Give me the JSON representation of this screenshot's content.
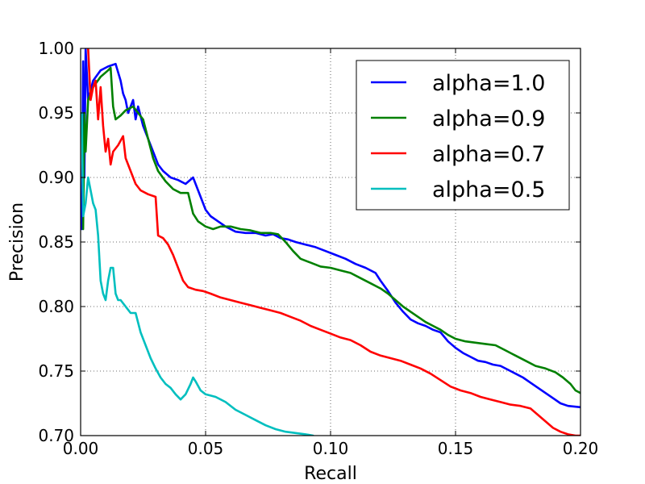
{
  "chart_data": {
    "type": "line",
    "title": "",
    "xlabel": "Recall",
    "ylabel": "Precision",
    "xlim": [
      0.0,
      0.2
    ],
    "ylim": [
      0.7,
      1.0
    ],
    "grid": true,
    "legend_position": "top-right",
    "x_ticks": [
      0.0,
      0.05,
      0.1,
      0.15,
      0.2
    ],
    "x_tick_labels": [
      "0.00",
      "0.05",
      "0.10",
      "0.15",
      "0.20"
    ],
    "y_ticks": [
      0.7,
      0.75,
      0.8,
      0.85,
      0.9,
      0.95,
      1.0
    ],
    "y_tick_labels": [
      "0.70",
      "0.75",
      "0.80",
      "0.85",
      "0.90",
      "0.95",
      "1.00"
    ],
    "series": [
      {
        "name": "alpha=1.0",
        "color": "#0000ff",
        "points": [
          [
            0.0005,
            0.86
          ],
          [
            0.001,
            0.99
          ],
          [
            0.0015,
            0.9
          ],
          [
            0.002,
            1.0
          ],
          [
            0.003,
            0.96
          ],
          [
            0.005,
            0.975
          ],
          [
            0.008,
            0.983
          ],
          [
            0.011,
            0.986
          ],
          [
            0.014,
            0.988
          ],
          [
            0.016,
            0.975
          ],
          [
            0.017,
            0.965
          ],
          [
            0.018,
            0.96
          ],
          [
            0.019,
            0.95
          ],
          [
            0.021,
            0.96
          ],
          [
            0.022,
            0.945
          ],
          [
            0.023,
            0.955
          ],
          [
            0.025,
            0.94
          ],
          [
            0.027,
            0.93
          ],
          [
            0.029,
            0.92
          ],
          [
            0.031,
            0.91
          ],
          [
            0.033,
            0.905
          ],
          [
            0.036,
            0.9
          ],
          [
            0.039,
            0.898
          ],
          [
            0.042,
            0.895
          ],
          [
            0.045,
            0.9
          ],
          [
            0.048,
            0.885
          ],
          [
            0.05,
            0.875
          ],
          [
            0.052,
            0.87
          ],
          [
            0.055,
            0.866
          ],
          [
            0.058,
            0.862
          ],
          [
            0.062,
            0.858
          ],
          [
            0.066,
            0.857
          ],
          [
            0.07,
            0.857
          ],
          [
            0.074,
            0.855
          ],
          [
            0.077,
            0.856
          ],
          [
            0.08,
            0.853
          ],
          [
            0.083,
            0.852
          ],
          [
            0.086,
            0.85
          ],
          [
            0.09,
            0.848
          ],
          [
            0.094,
            0.846
          ],
          [
            0.098,
            0.843
          ],
          [
            0.102,
            0.84
          ],
          [
            0.106,
            0.837
          ],
          [
            0.11,
            0.833
          ],
          [
            0.114,
            0.83
          ],
          [
            0.118,
            0.826
          ],
          [
            0.12,
            0.82
          ],
          [
            0.123,
            0.812
          ],
          [
            0.126,
            0.803
          ],
          [
            0.129,
            0.796
          ],
          [
            0.132,
            0.79
          ],
          [
            0.135,
            0.787
          ],
          [
            0.138,
            0.785
          ],
          [
            0.141,
            0.782
          ],
          [
            0.144,
            0.78
          ],
          [
            0.147,
            0.773
          ],
          [
            0.15,
            0.768
          ],
          [
            0.153,
            0.764
          ],
          [
            0.156,
            0.761
          ],
          [
            0.159,
            0.758
          ],
          [
            0.162,
            0.757
          ],
          [
            0.165,
            0.755
          ],
          [
            0.168,
            0.754
          ],
          [
            0.171,
            0.751
          ],
          [
            0.174,
            0.748
          ],
          [
            0.177,
            0.745
          ],
          [
            0.18,
            0.741
          ],
          [
            0.183,
            0.737
          ],
          [
            0.186,
            0.733
          ],
          [
            0.189,
            0.729
          ],
          [
            0.192,
            0.725
          ],
          [
            0.195,
            0.723
          ],
          [
            0.2,
            0.722
          ]
        ]
      },
      {
        "name": "alpha=0.9",
        "color": "#008000",
        "points": [
          [
            0.001,
            0.86
          ],
          [
            0.0015,
            0.95
          ],
          [
            0.002,
            0.92
          ],
          [
            0.003,
            0.96
          ],
          [
            0.005,
            0.97
          ],
          [
            0.008,
            0.978
          ],
          [
            0.011,
            0.983
          ],
          [
            0.012,
            0.985
          ],
          [
            0.013,
            0.955
          ],
          [
            0.014,
            0.945
          ],
          [
            0.016,
            0.948
          ],
          [
            0.018,
            0.952
          ],
          [
            0.021,
            0.955
          ],
          [
            0.023,
            0.95
          ],
          [
            0.025,
            0.945
          ],
          [
            0.027,
            0.93
          ],
          [
            0.029,
            0.915
          ],
          [
            0.031,
            0.905
          ],
          [
            0.034,
            0.897
          ],
          [
            0.037,
            0.891
          ],
          [
            0.04,
            0.888
          ],
          [
            0.043,
            0.888
          ],
          [
            0.045,
            0.872
          ],
          [
            0.047,
            0.866
          ],
          [
            0.05,
            0.862
          ],
          [
            0.053,
            0.86
          ],
          [
            0.056,
            0.862
          ],
          [
            0.06,
            0.862
          ],
          [
            0.064,
            0.86
          ],
          [
            0.068,
            0.859
          ],
          [
            0.072,
            0.857
          ],
          [
            0.076,
            0.857
          ],
          [
            0.079,
            0.856
          ],
          [
            0.082,
            0.85
          ],
          [
            0.085,
            0.843
          ],
          [
            0.088,
            0.837
          ],
          [
            0.092,
            0.834
          ],
          [
            0.096,
            0.831
          ],
          [
            0.1,
            0.83
          ],
          [
            0.104,
            0.828
          ],
          [
            0.108,
            0.826
          ],
          [
            0.112,
            0.822
          ],
          [
            0.116,
            0.818
          ],
          [
            0.12,
            0.814
          ],
          [
            0.123,
            0.81
          ],
          [
            0.126,
            0.805
          ],
          [
            0.129,
            0.8
          ],
          [
            0.132,
            0.796
          ],
          [
            0.135,
            0.792
          ],
          [
            0.138,
            0.788
          ],
          [
            0.141,
            0.785
          ],
          [
            0.144,
            0.782
          ],
          [
            0.147,
            0.778
          ],
          [
            0.15,
            0.775
          ],
          [
            0.154,
            0.773
          ],
          [
            0.158,
            0.772
          ],
          [
            0.162,
            0.771
          ],
          [
            0.166,
            0.77
          ],
          [
            0.17,
            0.766
          ],
          [
            0.174,
            0.762
          ],
          [
            0.178,
            0.758
          ],
          [
            0.182,
            0.754
          ],
          [
            0.186,
            0.752
          ],
          [
            0.19,
            0.749
          ],
          [
            0.193,
            0.745
          ],
          [
            0.196,
            0.74
          ],
          [
            0.198,
            0.735
          ],
          [
            0.2,
            0.733
          ]
        ]
      },
      {
        "name": "alpha=0.7",
        "color": "#ff0000",
        "points": [
          [
            0.003,
            1.0
          ],
          [
            0.004,
            0.96
          ],
          [
            0.005,
            0.97
          ],
          [
            0.006,
            0.975
          ],
          [
            0.007,
            0.945
          ],
          [
            0.008,
            0.97
          ],
          [
            0.009,
            0.94
          ],
          [
            0.01,
            0.92
          ],
          [
            0.011,
            0.93
          ],
          [
            0.012,
            0.91
          ],
          [
            0.013,
            0.92
          ],
          [
            0.015,
            0.925
          ],
          [
            0.017,
            0.932
          ],
          [
            0.018,
            0.915
          ],
          [
            0.019,
            0.91
          ],
          [
            0.02,
            0.905
          ],
          [
            0.022,
            0.895
          ],
          [
            0.024,
            0.89
          ],
          [
            0.027,
            0.887
          ],
          [
            0.03,
            0.885
          ],
          [
            0.031,
            0.855
          ],
          [
            0.033,
            0.853
          ],
          [
            0.035,
            0.848
          ],
          [
            0.037,
            0.84
          ],
          [
            0.039,
            0.83
          ],
          [
            0.041,
            0.82
          ],
          [
            0.043,
            0.815
          ],
          [
            0.046,
            0.813
          ],
          [
            0.049,
            0.812
          ],
          [
            0.052,
            0.81
          ],
          [
            0.056,
            0.807
          ],
          [
            0.06,
            0.805
          ],
          [
            0.064,
            0.803
          ],
          [
            0.068,
            0.801
          ],
          [
            0.072,
            0.799
          ],
          [
            0.076,
            0.797
          ],
          [
            0.08,
            0.795
          ],
          [
            0.084,
            0.792
          ],
          [
            0.088,
            0.789
          ],
          [
            0.092,
            0.785
          ],
          [
            0.096,
            0.782
          ],
          [
            0.1,
            0.779
          ],
          [
            0.104,
            0.776
          ],
          [
            0.108,
            0.774
          ],
          [
            0.112,
            0.77
          ],
          [
            0.116,
            0.765
          ],
          [
            0.12,
            0.762
          ],
          [
            0.124,
            0.76
          ],
          [
            0.128,
            0.758
          ],
          [
            0.132,
            0.755
          ],
          [
            0.136,
            0.752
          ],
          [
            0.14,
            0.748
          ],
          [
            0.144,
            0.743
          ],
          [
            0.148,
            0.738
          ],
          [
            0.152,
            0.735
          ],
          [
            0.156,
            0.733
          ],
          [
            0.16,
            0.73
          ],
          [
            0.164,
            0.728
          ],
          [
            0.168,
            0.726
          ],
          [
            0.172,
            0.724
          ],
          [
            0.176,
            0.723
          ],
          [
            0.18,
            0.721
          ],
          [
            0.183,
            0.716
          ],
          [
            0.186,
            0.711
          ],
          [
            0.189,
            0.706
          ],
          [
            0.192,
            0.703
          ],
          [
            0.195,
            0.701
          ],
          [
            0.198,
            0.7
          ],
          [
            0.2,
            0.7
          ]
        ]
      },
      {
        "name": "alpha=0.5",
        "color": "#00bfbf",
        "points": [
          [
            0.0005,
            0.95
          ],
          [
            0.001,
            0.87
          ],
          [
            0.002,
            0.88
          ],
          [
            0.003,
            0.9
          ],
          [
            0.004,
            0.89
          ],
          [
            0.005,
            0.88
          ],
          [
            0.006,
            0.875
          ],
          [
            0.007,
            0.855
          ],
          [
            0.008,
            0.82
          ],
          [
            0.009,
            0.81
          ],
          [
            0.01,
            0.805
          ],
          [
            0.011,
            0.82
          ],
          [
            0.012,
            0.83
          ],
          [
            0.013,
            0.83
          ],
          [
            0.014,
            0.81
          ],
          [
            0.015,
            0.805
          ],
          [
            0.016,
            0.805
          ],
          [
            0.018,
            0.8
          ],
          [
            0.02,
            0.795
          ],
          [
            0.022,
            0.795
          ],
          [
            0.024,
            0.78
          ],
          [
            0.026,
            0.77
          ],
          [
            0.028,
            0.76
          ],
          [
            0.03,
            0.752
          ],
          [
            0.032,
            0.745
          ],
          [
            0.034,
            0.74
          ],
          [
            0.036,
            0.737
          ],
          [
            0.038,
            0.732
          ],
          [
            0.04,
            0.728
          ],
          [
            0.042,
            0.732
          ],
          [
            0.044,
            0.74
          ],
          [
            0.045,
            0.745
          ],
          [
            0.046,
            0.742
          ],
          [
            0.048,
            0.735
          ],
          [
            0.05,
            0.732
          ],
          [
            0.054,
            0.73
          ],
          [
            0.058,
            0.726
          ],
          [
            0.062,
            0.72
          ],
          [
            0.066,
            0.716
          ],
          [
            0.07,
            0.712
          ],
          [
            0.074,
            0.708
          ],
          [
            0.078,
            0.705
          ],
          [
            0.082,
            0.703
          ],
          [
            0.086,
            0.702
          ],
          [
            0.09,
            0.701
          ],
          [
            0.093,
            0.7
          ]
        ]
      }
    ]
  }
}
